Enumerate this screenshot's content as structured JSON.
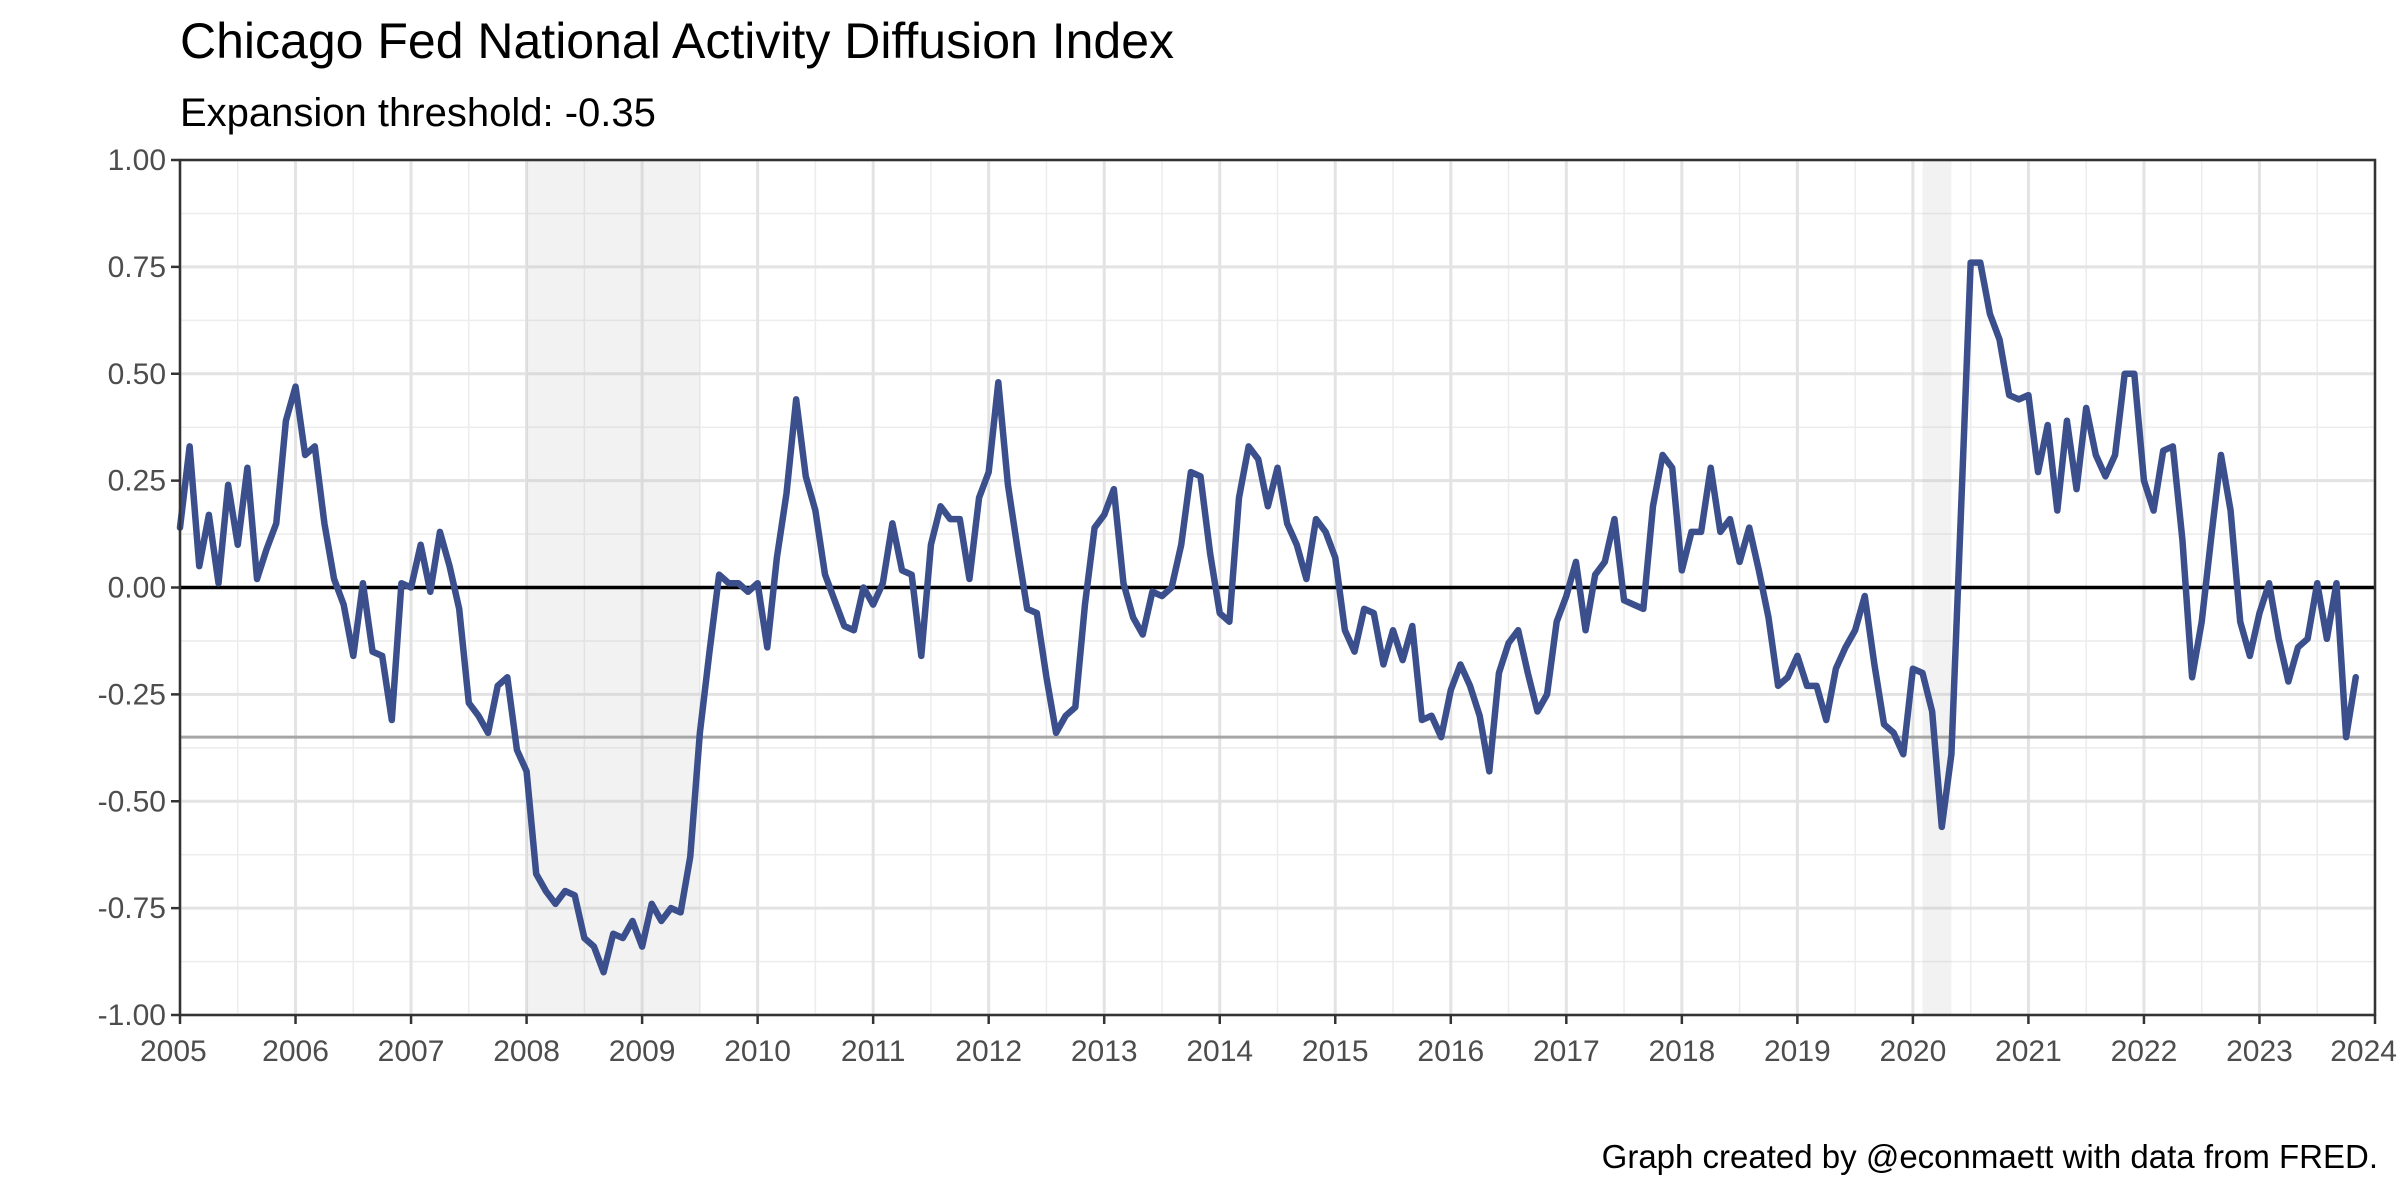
{
  "chart_data": {
    "type": "line",
    "title": "Chicago Fed National Activity Diffusion Index",
    "subtitle": "Expansion threshold: -0.35",
    "caption": "Graph created by @econmaett with data from FRED.",
    "xlabel": "",
    "ylabel": "",
    "xlim": [
      2005.0,
      2024.0
    ],
    "ylim": [
      -1.0,
      1.0
    ],
    "x_ticks": [
      "2005",
      "2006",
      "2007",
      "2008",
      "2009",
      "2010",
      "2011",
      "2012",
      "2013",
      "2014",
      "2015",
      "2016",
      "2017",
      "2018",
      "2019",
      "2020",
      "2021",
      "2022",
      "2023",
      "2024"
    ],
    "y_ticks": [
      "1.00",
      "0.75",
      "0.50",
      "0.25",
      "0.00",
      "-0.25",
      "-0.50",
      "-0.75",
      "-1.00"
    ],
    "grid": true,
    "reference_lines": [
      {
        "y": 0.0,
        "color": "#000000"
      },
      {
        "y": -0.35,
        "color": "#a6a6a6"
      }
    ],
    "recessions": [
      {
        "start": "2008-01",
        "end": "2009-06"
      },
      {
        "start": "2020-02",
        "end": "2020-04"
      }
    ],
    "series": [
      {
        "color": "#3b4f8c",
        "start": "2005-01",
        "values": [
          0.14,
          0.33,
          0.05,
          0.17,
          0.01,
          0.24,
          0.1,
          0.28,
          0.02,
          0.09,
          0.15,
          0.39,
          0.47,
          0.31,
          0.33,
          0.15,
          0.02,
          -0.04,
          -0.16,
          0.01,
          -0.15,
          -0.16,
          -0.31,
          0.01,
          0.0,
          0.1,
          -0.01,
          0.13,
          0.05,
          -0.05,
          -0.27,
          -0.3,
          -0.34,
          -0.23,
          -0.21,
          -0.38,
          -0.43,
          -0.67,
          -0.71,
          -0.74,
          -0.71,
          -0.72,
          -0.82,
          -0.84,
          -0.9,
          -0.81,
          -0.82,
          -0.78,
          -0.84,
          -0.74,
          -0.78,
          -0.75,
          -0.76,
          -0.63,
          -0.34,
          -0.15,
          0.03,
          0.01,
          0.01,
          -0.01,
          0.01,
          -0.14,
          0.07,
          0.22,
          0.44,
          0.26,
          0.18,
          0.03,
          -0.03,
          -0.09,
          -0.1,
          0.0,
          -0.04,
          0.01,
          0.15,
          0.04,
          0.03,
          -0.16,
          0.1,
          0.19,
          0.16,
          0.16,
          0.02,
          0.21,
          0.27,
          0.48,
          0.24,
          0.09,
          -0.05,
          -0.06,
          -0.21,
          -0.34,
          -0.3,
          -0.28,
          -0.04,
          0.14,
          0.17,
          0.23,
          0.01,
          -0.07,
          -0.11,
          -0.01,
          -0.02,
          0.0,
          0.1,
          0.27,
          0.26,
          0.08,
          -0.06,
          -0.08,
          0.21,
          0.33,
          0.3,
          0.19,
          0.28,
          0.15,
          0.1,
          0.02,
          0.16,
          0.13,
          0.07,
          -0.1,
          -0.15,
          -0.05,
          -0.06,
          -0.18,
          -0.1,
          -0.17,
          -0.09,
          -0.31,
          -0.3,
          -0.35,
          -0.24,
          -0.18,
          -0.23,
          -0.3,
          -0.43,
          -0.2,
          -0.13,
          -0.1,
          -0.2,
          -0.29,
          -0.25,
          -0.08,
          -0.02,
          0.06,
          -0.1,
          0.03,
          0.06,
          0.16,
          -0.03,
          -0.04,
          -0.05,
          0.19,
          0.31,
          0.28,
          0.04,
          0.13,
          0.13,
          0.28,
          0.13,
          0.16,
          0.06,
          0.14,
          0.04,
          -0.07,
          -0.23,
          -0.21,
          -0.16,
          -0.23,
          -0.23,
          -0.31,
          -0.19,
          -0.14,
          -0.1,
          -0.02,
          -0.18,
          -0.32,
          -0.34,
          -0.39,
          -0.19,
          -0.2,
          -0.29,
          -0.56,
          -0.39,
          0.18,
          0.76,
          0.76,
          0.64,
          0.58,
          0.45,
          0.44,
          0.45,
          0.27,
          0.38,
          0.18,
          0.39,
          0.23,
          0.42,
          0.31,
          0.26,
          0.31,
          0.5,
          0.5,
          0.25,
          0.18,
          0.32,
          0.33,
          0.11,
          -0.21,
          -0.08,
          0.12,
          0.31,
          0.18,
          -0.08,
          -0.16,
          -0.06,
          0.01,
          -0.12,
          -0.22,
          -0.14,
          -0.12,
          0.01,
          -0.12,
          0.01,
          -0.35,
          -0.21
        ]
      }
    ]
  }
}
